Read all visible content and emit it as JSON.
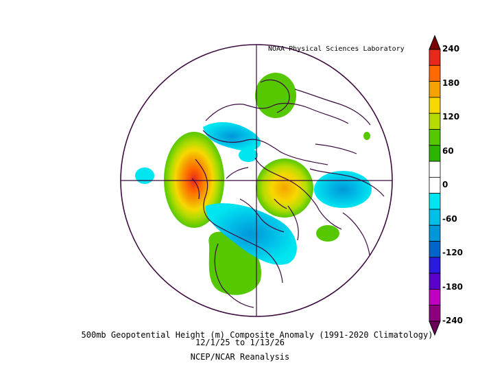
{
  "credit": "NOAA Physical Sciences Laboratory",
  "title": "500mb Geopotential Height (m) Composite Anomaly (1991-2020 Climatology)",
  "dates": "12/1/25   to 1/13/26",
  "source": "NCEP/NCAR Reanalysis",
  "colorbar": {
    "ticks": [
      "240",
      "180",
      "120",
      "60",
      "0",
      "-60",
      "-120",
      "-180",
      "-240"
    ],
    "colors": [
      "#7a0000",
      "#e8281a",
      "#ff6a00",
      "#f5a300",
      "#f7d800",
      "#b4dc00",
      "#55c800",
      "#2eb300",
      "#ffffff",
      "#ffffff",
      "#00e6f0",
      "#00c0e8",
      "#0096d8",
      "#0064c8",
      "#2a1ae0",
      "#5a00c8",
      "#c000c0",
      "#8c0080",
      "#6a0058"
    ]
  },
  "map_features": {
    "anomaly_regions": [
      {
        "label": "strong positive anomaly over Gulf of Alaska / western North America",
        "sign": "positive",
        "peak": "240"
      },
      {
        "label": "positive anomaly over Scandinavia / North Atlantic",
        "sign": "positive"
      },
      {
        "label": "positive anomaly over southeastern Europe",
        "sign": "positive"
      },
      {
        "label": "positive anomaly over central Asia",
        "sign": "positive"
      },
      {
        "label": "positive anomaly over eastern North America",
        "sign": "positive"
      },
      {
        "label": "negative anomaly over eastern Canada / Hudson Bay",
        "sign": "negative"
      },
      {
        "label": "negative anomaly over Greenland / Arctic",
        "sign": "negative"
      },
      {
        "label": "negative anomaly over western Europe / North Atlantic",
        "sign": "negative"
      },
      {
        "label": "negative anomaly over eastern Siberia",
        "sign": "negative"
      }
    ]
  }
}
